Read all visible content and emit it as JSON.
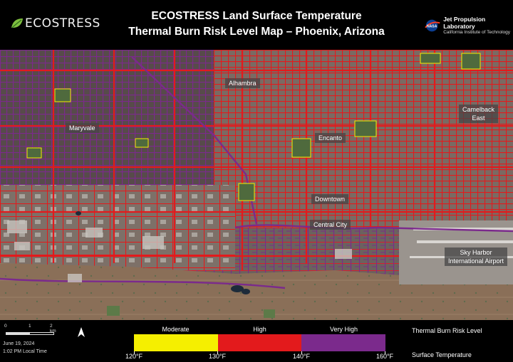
{
  "header": {
    "logo_text": "ECOSTRESS",
    "title_line1": "ECOSTRESS Land Surface Temperature",
    "title_line2": "Thermal Burn Risk Level Map – Phoenix, Arizona",
    "jpl_line1": "Jet Propulsion Laboratory",
    "jpl_line2": "California Institute of Technology",
    "nasa_logo_text": "NASA"
  },
  "map": {
    "places": [
      {
        "id": "alhambra",
        "label": "Alhambra"
      },
      {
        "id": "maryvale",
        "label": "Maryvale"
      },
      {
        "id": "encanto",
        "label": "Encanto"
      },
      {
        "id": "camelback-east",
        "line1": "Camelback",
        "line2": "East"
      },
      {
        "id": "downtown",
        "label": "Downtown"
      },
      {
        "id": "central-city",
        "label": "Central City"
      },
      {
        "id": "sky-harbor",
        "line1": "Sky Harbor",
        "line2": "International Airport"
      }
    ]
  },
  "footer": {
    "scale_labels": [
      "0",
      "1",
      "2 km"
    ],
    "date": "June 19, 2024",
    "time": "1:02 PM Local Time",
    "north_icon": "north-arrow-icon",
    "legend": {
      "title": "Thermal Burn Risk Level",
      "subtitle": "Surface Temperature",
      "classes": [
        {
          "label": "Moderate",
          "color": "#f5ef00"
        },
        {
          "label": "High",
          "color": "#e31a1c"
        },
        {
          "label": "Very High",
          "color": "#7b2a8c"
        }
      ],
      "temperatures": [
        "120°F",
        "130°F",
        "140°F",
        "160°F"
      ]
    }
  }
}
